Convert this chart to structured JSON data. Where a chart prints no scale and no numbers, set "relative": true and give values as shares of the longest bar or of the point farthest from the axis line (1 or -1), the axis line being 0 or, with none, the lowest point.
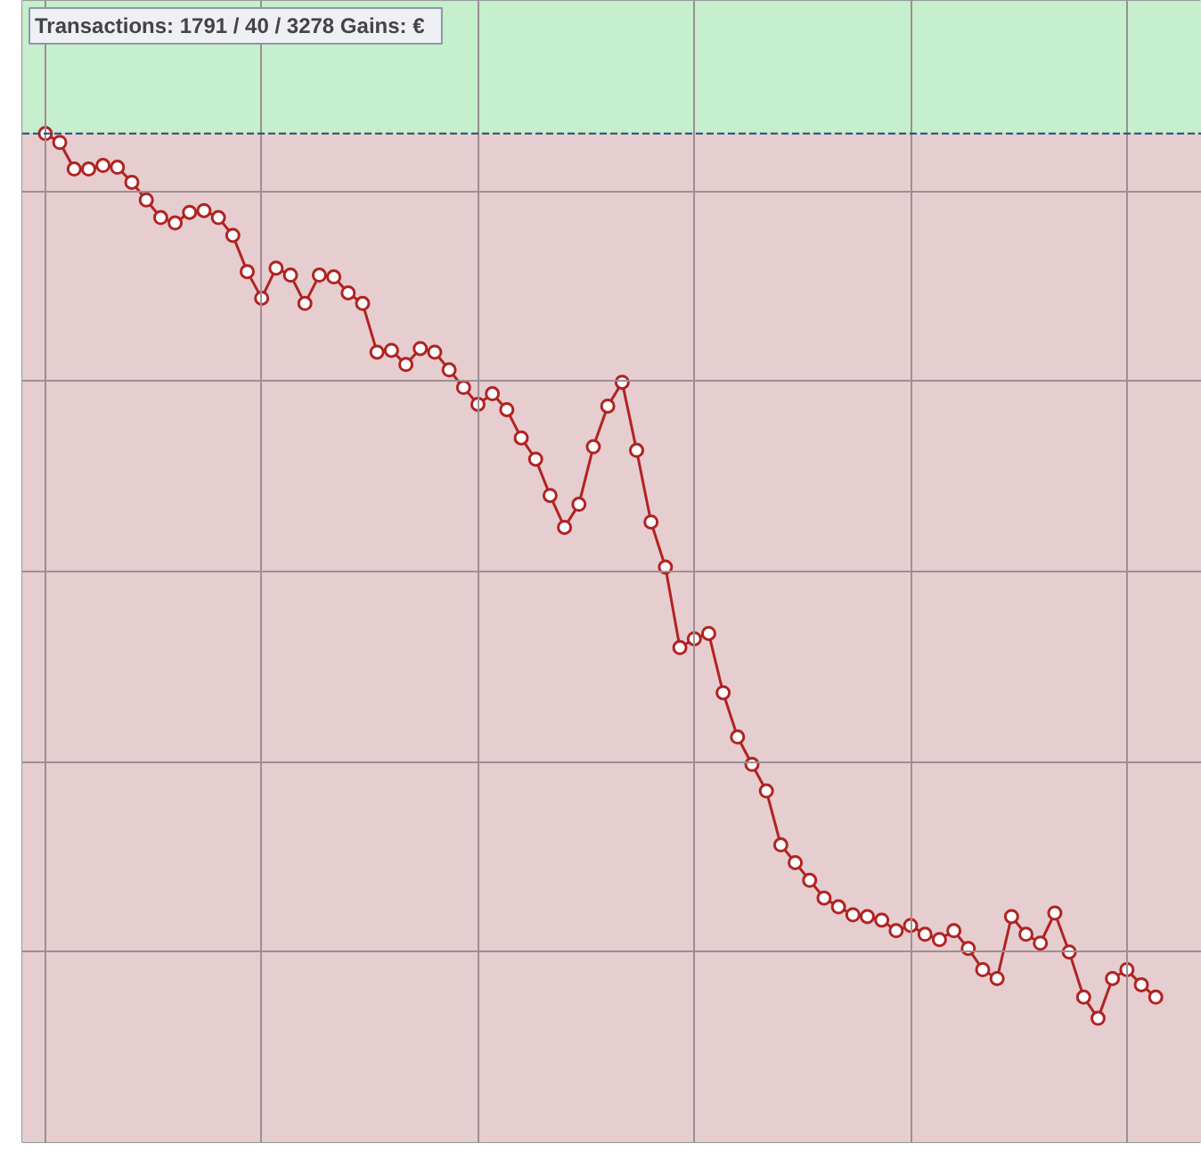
{
  "chart_data": {
    "type": "line",
    "title": "Transactions: 1791 / 40 / 3278   Gains: €",
    "relative": true,
    "grid": true,
    "marker": "circle",
    "tick_labels": false,
    "categories": [
      null,
      null,
      null,
      null,
      null,
      null,
      null,
      null,
      null,
      null,
      null,
      null,
      null,
      null,
      null,
      null,
      null,
      null,
      null,
      null,
      null,
      null,
      null,
      null,
      null,
      null,
      null,
      null,
      null,
      null,
      null,
      null,
      null,
      null,
      null,
      null,
      null,
      null,
      null,
      null,
      null,
      null,
      null,
      null,
      null,
      null,
      null,
      null,
      null,
      null,
      null,
      null,
      null,
      null,
      null,
      null,
      null,
      null,
      null,
      null,
      null,
      null,
      null,
      null,
      null,
      null,
      null,
      null,
      null,
      null,
      null,
      null,
      null,
      null,
      null,
      null,
      null,
      null
    ],
    "series": [
      {
        "color": "#b22222",
        "values": [
          0,
          -0.01,
          -0.04,
          -0.04,
          -0.036,
          -0.038,
          -0.055,
          -0.075,
          -0.095,
          -0.101,
          -0.089,
          -0.087,
          -0.095,
          -0.115,
          -0.156,
          -0.186,
          -0.152,
          -0.16,
          -0.192,
          -0.16,
          -0.162,
          -0.18,
          -0.192,
          -0.247,
          -0.245,
          -0.261,
          -0.243,
          -0.247,
          -0.267,
          -0.287,
          -0.306,
          -0.294,
          -0.312,
          -0.344,
          -0.368,
          -0.409,
          -0.445,
          -0.419,
          -0.354,
          -0.308,
          -0.281,
          -0.358,
          -0.439,
          -0.49,
          -0.581,
          -0.571,
          -0.565,
          -0.632,
          -0.682,
          -0.713,
          -0.743,
          -0.804,
          -0.824,
          -0.844,
          -0.864,
          -0.874,
          -0.883,
          -0.885,
          -0.889,
          -0.901,
          -0.895,
          -0.905,
          -0.911,
          -0.901,
          -0.921,
          -0.945,
          -0.955,
          -0.885,
          -0.905,
          -0.915,
          -0.881,
          -0.925,
          -0.976,
          -1,
          -0.955,
          -0.945,
          -0.962,
          -0.976
        ]
      }
    ],
    "ref_lines": [
      {
        "axis": "y",
        "value": 0,
        "color": "#1f4e79",
        "line_style": "dashed"
      }
    ],
    "bands": [
      {
        "axis": "y",
        "from": 0,
        "to": 0.15,
        "color": "#c6efce"
      },
      {
        "axis": "y",
        "from": -1.14,
        "to": 0,
        "color": "#e6cdd0"
      }
    ]
  }
}
